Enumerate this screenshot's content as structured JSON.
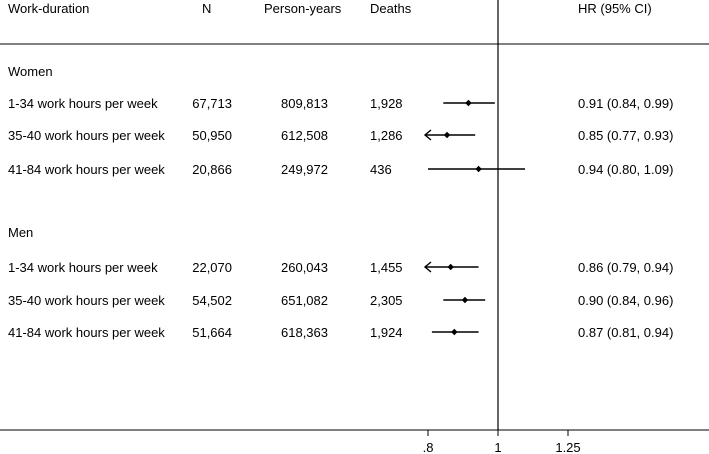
{
  "chart_data": {
    "type": "forest",
    "headers": {
      "label": "Work-duration",
      "n": "N",
      "person_years": "Person-years",
      "deaths": "Deaths",
      "hr": "HR (95% CI)"
    },
    "groups": [
      {
        "name": "Women",
        "rows": [
          {
            "label": "1-34 work hours per week",
            "n": "67,713",
            "person_years": "809,813",
            "deaths": "1,928",
            "hr": 0.91,
            "lo": 0.84,
            "hi": 0.99,
            "hr_text": "0.91 (0.84, 0.99)"
          },
          {
            "label": "35-40 work hours per week",
            "n": "50,950",
            "person_years": "612,508",
            "deaths": "1,286",
            "hr": 0.85,
            "lo": 0.77,
            "hi": 0.93,
            "hr_text": "0.85 (0.77, 0.93)"
          },
          {
            "label": "41-84 work hours per week",
            "n": "20,866",
            "person_years": "249,972",
            "deaths": "436",
            "hr": 0.94,
            "lo": 0.8,
            "hi": 1.09,
            "hr_text": "0.94 (0.80, 1.09)"
          }
        ]
      },
      {
        "name": "Men",
        "rows": [
          {
            "label": "1-34 work hours per week",
            "n": "22,070",
            "person_years": "260,043",
            "deaths": "1,455",
            "hr": 0.86,
            "lo": 0.79,
            "hi": 0.94,
            "hr_text": "0.86 (0.79, 0.94)"
          },
          {
            "label": "35-40 work hours per week",
            "n": "54,502",
            "person_years": "651,082",
            "deaths": "2,305",
            "hr": 0.9,
            "lo": 0.84,
            "hi": 0.96,
            "hr_text": "0.90 (0.84, 0.96)"
          },
          {
            "label": "41-84 work hours per week",
            "n": "51,664",
            "person_years": "618,363",
            "deaths": "1,924",
            "hr": 0.87,
            "lo": 0.81,
            "hi": 0.94,
            "hr_text": "0.87 (0.81, 0.94)"
          }
        ]
      }
    ],
    "x_axis": {
      "ticks": [
        0.8,
        1,
        1.25
      ],
      "tick_labels": [
        ".8",
        "1",
        "1.25"
      ],
      "scale": "log",
      "range": [
        0.8,
        1.25
      ],
      "reference_line": 1
    },
    "colors": {
      "ink": "#000000"
    }
  }
}
